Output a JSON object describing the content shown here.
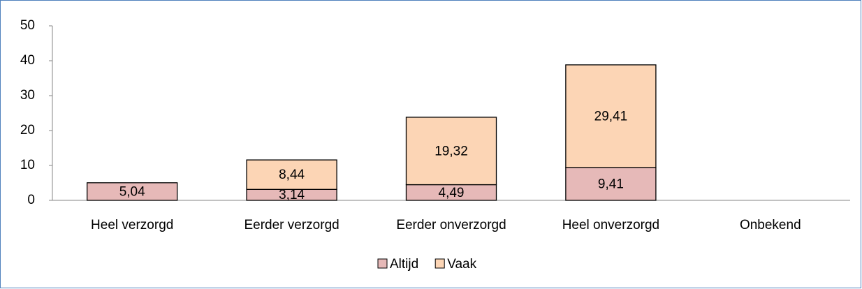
{
  "chart_data": {
    "type": "stacked_bar",
    "categories": [
      "Heel verzorgd",
      "Eerder verzorgd",
      "Eerder onverzorgd",
      "Heel onverzorgd",
      "Onbekend"
    ],
    "series": [
      {
        "name": "Altijd",
        "color": "#e6b9b8",
        "values": [
          5.04,
          3.14,
          4.49,
          9.41,
          null
        ],
        "value_labels": [
          "5,04",
          "3,14",
          "4,49",
          "9,41",
          null
        ]
      },
      {
        "name": "Vaak",
        "color": "#fcd5b5",
        "values": [
          null,
          8.44,
          19.32,
          29.41,
          null
        ],
        "value_labels": [
          null,
          "8,44",
          "19,32",
          "29,41",
          null
        ]
      }
    ],
    "ylim": [
      0,
      50
    ],
    "yticks": [
      0,
      10,
      20,
      30,
      40,
      50
    ],
    "grid": false,
    "legend": "bottom"
  }
}
